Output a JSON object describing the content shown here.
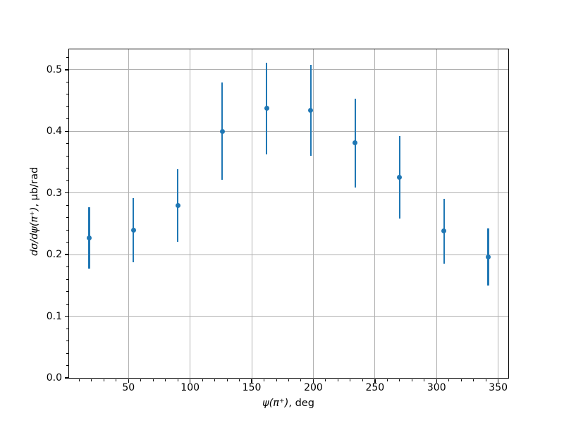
{
  "figure": {
    "background": "#ffffff",
    "axis_color": "#000000"
  },
  "chart_data": {
    "type": "scatter",
    "subtype": "errorbar",
    "title": "",
    "xlabel": "ψ(π⁺), deg",
    "xlabel_math": "ψ(π⁺)",
    "xlabel_unit": ", deg",
    "ylabel": "dσ/dψ(π⁺), μb/rad",
    "ylabel_math": "dσ/dψ(π⁺)",
    "ylabel_unit": ", μb/rad",
    "x": [
      18,
      54,
      90,
      126,
      162,
      198,
      234,
      270,
      306,
      342
    ],
    "y": [
      0.227,
      0.24,
      0.28,
      0.4,
      0.437,
      0.434,
      0.381,
      0.325,
      0.238,
      0.196
    ],
    "yerr": [
      0.05,
      0.052,
      0.059,
      0.079,
      0.074,
      0.074,
      0.072,
      0.067,
      0.053,
      0.046
    ],
    "xlim": [
      1.8,
      358.2
    ],
    "ylim": [
      0,
      0.533
    ],
    "x_major_ticks": [
      50,
      100,
      150,
      200,
      250,
      300,
      350
    ],
    "x_tick_labels": [
      "50",
      "100",
      "150",
      "200",
      "250",
      "300",
      "350"
    ],
    "x_minor_step": 10,
    "y_major_ticks": [
      0.0,
      0.1,
      0.2,
      0.3,
      0.4,
      0.5
    ],
    "y_tick_labels": [
      "0.0",
      "0.1",
      "0.2",
      "0.3",
      "0.4",
      "0.5"
    ],
    "y_minor_step": 0.02,
    "grid": true,
    "legend": null,
    "point_color": "#1f77b4",
    "grid_color": "#b0b0b0"
  }
}
